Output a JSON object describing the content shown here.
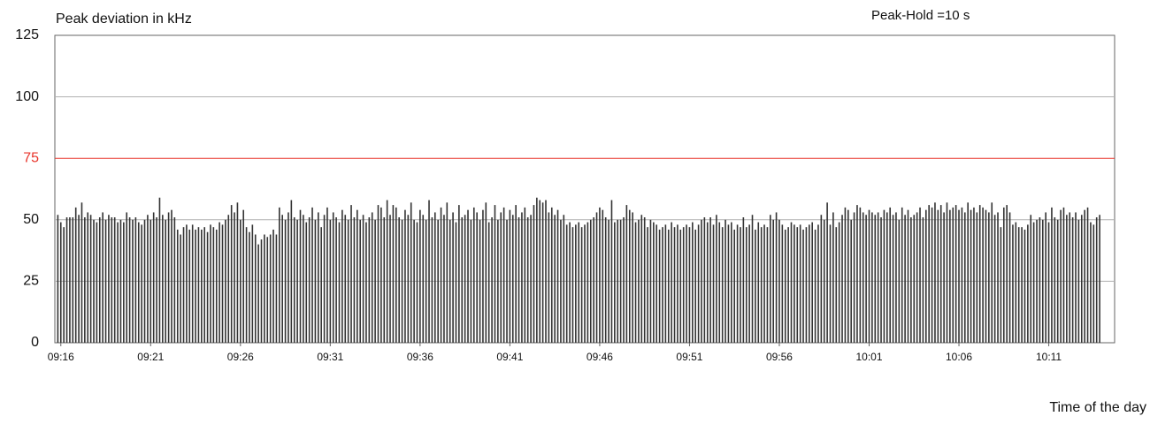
{
  "chart_data": {
    "type": "bar",
    "title": "Peak deviation in kHz",
    "subtitle": "Peak-Hold =10 s",
    "x_label": "Time of the day",
    "color": "#333333",
    "grid": true,
    "grid_color": "#b0b0b0",
    "limit": 75,
    "limit_color": "#e8342a",
    "ylim": [
      0,
      125
    ],
    "yticks": [
      0,
      25,
      50,
      75,
      100,
      125
    ],
    "xlim": [
      -1,
      353
    ],
    "xticks": [
      {
        "value": 1,
        "label": "09:16"
      },
      {
        "value": 31,
        "label": "09:21"
      },
      {
        "value": 61,
        "label": "09:26"
      },
      {
        "value": 91,
        "label": "09:31"
      },
      {
        "value": 121,
        "label": "09:36"
      },
      {
        "value": 151,
        "label": "09:41"
      },
      {
        "value": 181,
        "label": "09:46"
      },
      {
        "value": 211,
        "label": "09:51"
      },
      {
        "value": 241,
        "label": "09:56"
      },
      {
        "value": 271,
        "label": "10:01"
      },
      {
        "value": 301,
        "label": "10:06"
      },
      {
        "value": 331,
        "label": "10:11"
      }
    ],
    "values": [
      52,
      49,
      47,
      51,
      51,
      51,
      55,
      52,
      57,
      51,
      53,
      52,
      50,
      49,
      51,
      53,
      50,
      52,
      51,
      51,
      49,
      50,
      49,
      53,
      51,
      50,
      51,
      49,
      48,
      50,
      52,
      50,
      53,
      51,
      59,
      52,
      50,
      53,
      54,
      51,
      46,
      44,
      47,
      48,
      46,
      48,
      46,
      47,
      46,
      47,
      45,
      48,
      47,
      46,
      49,
      48,
      50,
      52,
      56,
      53,
      57,
      50,
      54,
      47,
      45,
      48,
      44,
      40,
      42,
      44,
      43,
      44,
      46,
      44,
      55,
      52,
      50,
      53,
      58,
      51,
      50,
      54,
      52,
      49,
      51,
      55,
      50,
      53,
      47,
      52,
      55,
      50,
      53,
      51,
      49,
      54,
      52,
      50,
      56,
      51,
      54,
      50,
      52,
      49,
      51,
      53,
      50,
      56,
      55,
      51,
      58,
      52,
      56,
      55,
      51,
      50,
      54,
      52,
      57,
      50,
      49,
      54,
      52,
      50,
      58,
      51,
      53,
      50,
      55,
      52,
      57,
      50,
      53,
      49,
      56,
      51,
      52,
      54,
      50,
      55,
      53,
      50,
      54,
      57,
      49,
      51,
      56,
      50,
      53,
      55,
      50,
      54,
      52,
      56,
      51,
      53,
      55,
      51,
      52,
      56,
      59,
      58,
      57,
      58,
      53,
      55,
      52,
      54,
      50,
      52,
      48,
      49,
      47,
      48,
      49,
      47,
      48,
      49,
      50,
      51,
      53,
      55,
      54,
      51,
      50,
      58,
      49,
      50,
      50,
      51,
      56,
      54,
      53,
      49,
      50,
      52,
      51,
      47,
      50,
      49,
      48,
      46,
      47,
      48,
      46,
      49,
      47,
      48,
      46,
      47,
      48,
      47,
      49,
      46,
      48,
      50,
      51,
      49,
      51,
      48,
      52,
      49,
      47,
      50,
      48,
      49,
      46,
      48,
      47,
      51,
      47,
      48,
      52,
      46,
      49,
      47,
      48,
      47,
      52,
      50,
      53,
      50,
      48,
      46,
      47,
      49,
      48,
      47,
      48,
      46,
      47,
      48,
      49,
      46,
      48,
      52,
      50,
      57,
      48,
      53,
      47,
      49,
      52,
      55,
      54,
      50,
      53,
      56,
      55,
      53,
      52,
      54,
      53,
      52,
      53,
      51,
      54,
      53,
      55,
      52,
      53,
      50,
      55,
      52,
      54,
      51,
      52,
      53,
      55,
      51,
      54,
      56,
      55,
      57,
      54,
      56,
      53,
      57,
      54,
      55,
      56,
      54,
      55,
      53,
      57,
      54,
      55,
      53,
      56,
      55,
      54,
      53,
      57,
      52,
      53,
      47,
      55,
      56,
      53,
      48,
      49,
      47,
      47,
      46,
      48,
      52,
      49,
      50,
      51,
      50,
      53,
      49,
      55,
      51,
      50,
      54,
      55,
      52,
      53,
      51,
      53,
      50,
      52,
      54,
      55,
      49,
      48,
      51,
      52
    ]
  }
}
